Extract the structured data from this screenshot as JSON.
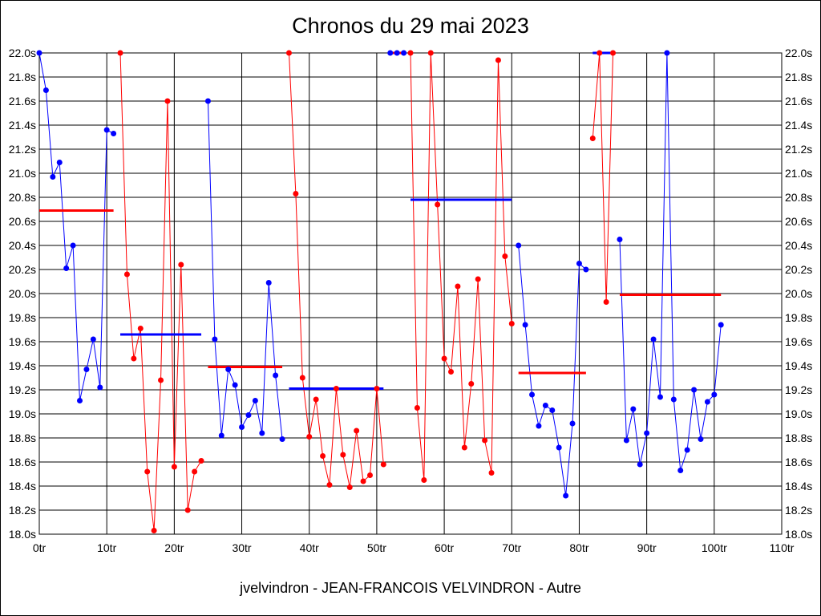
{
  "chart_data": {
    "type": "line",
    "title": "Chronos du 29 mai 2023",
    "footer": "jvelvindron - JEAN-FRANCOIS VELVINDRON - Autre",
    "xlim": [
      0,
      110
    ],
    "ylim": [
      18.0,
      22.0
    ],
    "x_ticks": [
      "0tr",
      "10tr",
      "20tr",
      "30tr",
      "40tr",
      "50tr",
      "60tr",
      "70tr",
      "80tr",
      "90tr",
      "100tr",
      "110tr"
    ],
    "y_ticks": [
      "18.0s",
      "18.2s",
      "18.4s",
      "18.6s",
      "18.8s",
      "19.0s",
      "19.2s",
      "19.4s",
      "19.6s",
      "19.8s",
      "20.0s",
      "20.2s",
      "20.4s",
      "20.6s",
      "20.8s",
      "21.0s",
      "21.2s",
      "21.4s",
      "21.6s",
      "21.8s",
      "22.0s"
    ],
    "grid": true,
    "colors": {
      "blue": "#0000ff",
      "red": "#ff0000"
    },
    "segments": [
      {
        "color": "blue",
        "start_lap": 0,
        "values": [
          22.0,
          21.69,
          20.97,
          21.09,
          20.21,
          20.4,
          19.11,
          19.37,
          19.62,
          19.22,
          21.36,
          21.33
        ],
        "average": 20.69
      },
      {
        "color": "red",
        "start_lap": 12,
        "values": [
          22.0,
          20.16,
          19.46,
          19.71,
          18.52,
          18.03,
          19.28,
          21.6,
          18.56,
          20.24,
          18.2,
          18.52,
          18.61
        ],
        "average": 19.66
      },
      {
        "color": "blue",
        "start_lap": 25,
        "values": [
          21.6,
          19.62,
          18.82,
          19.37,
          19.24,
          18.89,
          18.99,
          19.11,
          18.84,
          20.09,
          19.32,
          18.79
        ],
        "average": 19.39
      },
      {
        "color": "red",
        "start_lap": 37,
        "values": [
          22.0,
          20.83,
          19.3,
          18.81,
          19.12,
          18.65,
          18.41,
          19.21,
          18.66,
          18.39,
          18.86,
          18.44,
          18.49,
          19.21,
          18.58
        ],
        "average": 19.21
      },
      {
        "color": "blue",
        "start_lap": 52,
        "values": [
          22.0,
          22.0,
          22.0
        ],
        "average": 22.0
      },
      {
        "color": "red",
        "start_lap": 55,
        "values": [
          22.0,
          19.05,
          18.45,
          22.0,
          20.74,
          19.46,
          19.35,
          20.06,
          18.72,
          19.25,
          20.12,
          18.78,
          18.51,
          21.94,
          20.31,
          19.75
        ],
        "average": 20.78
      },
      {
        "color": "blue",
        "start_lap": 71,
        "values": [
          20.4,
          19.74,
          19.16,
          18.9,
          19.07,
          19.03,
          18.72,
          18.32,
          18.92,
          20.25,
          20.2
        ],
        "average": 19.34
      },
      {
        "color": "red",
        "start_lap": 82,
        "values": [
          21.29,
          22.0,
          19.93,
          22.0
        ],
        "average": 22.0
      },
      {
        "color": "blue",
        "start_lap": 86,
        "values": [
          20.45,
          18.78,
          19.04,
          18.58,
          18.84,
          19.62,
          19.14,
          22.0,
          19.12,
          18.53,
          18.7,
          19.2,
          18.79,
          19.1,
          19.16,
          19.74
        ],
        "average": 19.99
      }
    ]
  }
}
